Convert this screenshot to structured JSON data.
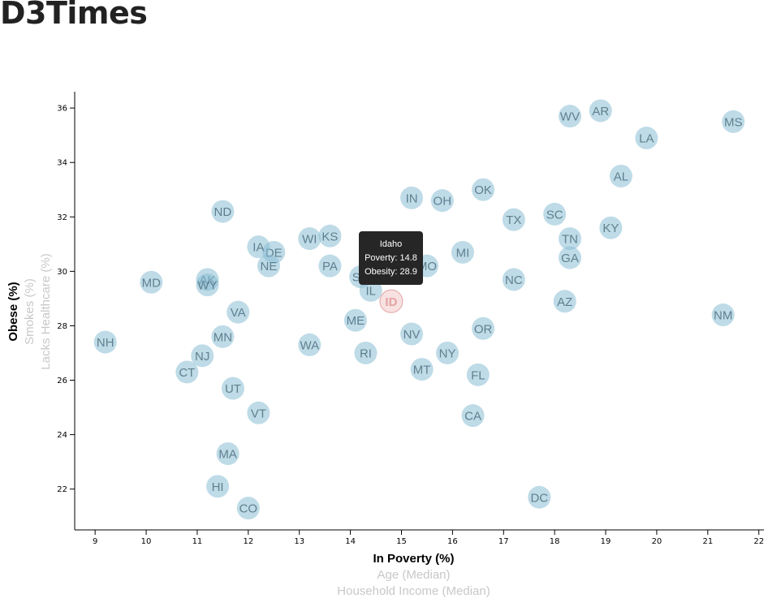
{
  "page": {
    "title": "D3Times"
  },
  "chart_data": {
    "type": "scatter",
    "xlabel": "In Poverty (%)",
    "ylabel": "Obese (%)",
    "x_axis_options": [
      "In Poverty (%)",
      "Age (Median)",
      "Household Income (Median)"
    ],
    "y_axis_options": [
      "Obese (%)",
      "Smokes (%)",
      "Lacks Healthcare (%)"
    ],
    "active_x": "In Poverty (%)",
    "active_y": "Obese (%)",
    "xlim": [
      8.6,
      22.1
    ],
    "ylim": [
      20.5,
      36.6
    ],
    "xticks": [
      9,
      10,
      11,
      12,
      13,
      14,
      15,
      16,
      17,
      18,
      19,
      20,
      21,
      22
    ],
    "yticks": [
      22,
      24,
      26,
      28,
      30,
      32,
      34,
      36
    ],
    "grid": false,
    "colors": {
      "point": "#89bdd3",
      "label": "#5f7f90",
      "highlight_fill": "#f8e1e1",
      "highlight_text": "#e3a3a3",
      "inactive_axis": "#c8c8c8"
    },
    "points": [
      {
        "abbr": "AL",
        "x": 19.3,
        "y": 33.5
      },
      {
        "abbr": "AK",
        "x": 11.2,
        "y": 29.7
      },
      {
        "abbr": "AZ",
        "x": 18.2,
        "y": 28.9
      },
      {
        "abbr": "AR",
        "x": 18.9,
        "y": 35.9
      },
      {
        "abbr": "CA",
        "x": 16.4,
        "y": 24.7
      },
      {
        "abbr": "CO",
        "x": 12.0,
        "y": 21.3
      },
      {
        "abbr": "CT",
        "x": 10.8,
        "y": 26.3
      },
      {
        "abbr": "DE",
        "x": 12.5,
        "y": 30.7
      },
      {
        "abbr": "DC",
        "x": 17.7,
        "y": 21.7
      },
      {
        "abbr": "FL",
        "x": 16.5,
        "y": 26.2
      },
      {
        "abbr": "GA",
        "x": 18.3,
        "y": 30.5
      },
      {
        "abbr": "HI",
        "x": 11.4,
        "y": 22.1
      },
      {
        "abbr": "ID",
        "x": 14.8,
        "y": 28.9
      },
      {
        "abbr": "IL",
        "x": 14.4,
        "y": 29.3
      },
      {
        "abbr": "IN",
        "x": 15.2,
        "y": 32.7
      },
      {
        "abbr": "IA",
        "x": 12.2,
        "y": 30.9
      },
      {
        "abbr": "KS",
        "x": 13.6,
        "y": 31.3
      },
      {
        "abbr": "KY",
        "x": 19.1,
        "y": 31.6
      },
      {
        "abbr": "LA",
        "x": 19.8,
        "y": 34.9
      },
      {
        "abbr": "ME",
        "x": 14.1,
        "y": 28.2
      },
      {
        "abbr": "MD",
        "x": 10.1,
        "y": 29.6
      },
      {
        "abbr": "MA",
        "x": 11.6,
        "y": 23.3
      },
      {
        "abbr": "MI",
        "x": 16.2,
        "y": 30.7
      },
      {
        "abbr": "MN",
        "x": 11.5,
        "y": 27.6
      },
      {
        "abbr": "MS",
        "x": 21.5,
        "y": 35.5
      },
      {
        "abbr": "MO",
        "x": 15.5,
        "y": 30.2
      },
      {
        "abbr": "MT",
        "x": 15.4,
        "y": 26.4
      },
      {
        "abbr": "NE",
        "x": 12.4,
        "y": 30.2
      },
      {
        "abbr": "NV",
        "x": 15.2,
        "y": 27.7
      },
      {
        "abbr": "NH",
        "x": 9.2,
        "y": 27.4
      },
      {
        "abbr": "NJ",
        "x": 11.1,
        "y": 26.9
      },
      {
        "abbr": "NM",
        "x": 21.3,
        "y": 28.4
      },
      {
        "abbr": "NY",
        "x": 15.9,
        "y": 27.0
      },
      {
        "abbr": "NC",
        "x": 17.2,
        "y": 29.7
      },
      {
        "abbr": "ND",
        "x": 11.5,
        "y": 32.2
      },
      {
        "abbr": "OH",
        "x": 15.8,
        "y": 32.6
      },
      {
        "abbr": "OK",
        "x": 16.6,
        "y": 33.0
      },
      {
        "abbr": "OR",
        "x": 16.6,
        "y": 27.9
      },
      {
        "abbr": "PA",
        "x": 13.6,
        "y": 30.2
      },
      {
        "abbr": "RI",
        "x": 14.3,
        "y": 27.0
      },
      {
        "abbr": "SC",
        "x": 18.0,
        "y": 32.1
      },
      {
        "abbr": "SD",
        "x": 14.2,
        "y": 29.8
      },
      {
        "abbr": "TN",
        "x": 18.3,
        "y": 31.2
      },
      {
        "abbr": "TX",
        "x": 17.2,
        "y": 31.9
      },
      {
        "abbr": "UT",
        "x": 11.7,
        "y": 25.7
      },
      {
        "abbr": "VT",
        "x": 12.2,
        "y": 24.8
      },
      {
        "abbr": "VA",
        "x": 11.8,
        "y": 28.5
      },
      {
        "abbr": "WA",
        "x": 13.2,
        "y": 27.3
      },
      {
        "abbr": "WV",
        "x": 18.3,
        "y": 35.7
      },
      {
        "abbr": "WI",
        "x": 13.2,
        "y": 31.2
      },
      {
        "abbr": "WY",
        "x": 11.2,
        "y": 29.5
      }
    ],
    "highlighted": "ID"
  },
  "tooltip": {
    "state": "Idaho",
    "poverty": "Poverty: 14.8",
    "obesity": "Obesity: 28.9"
  }
}
